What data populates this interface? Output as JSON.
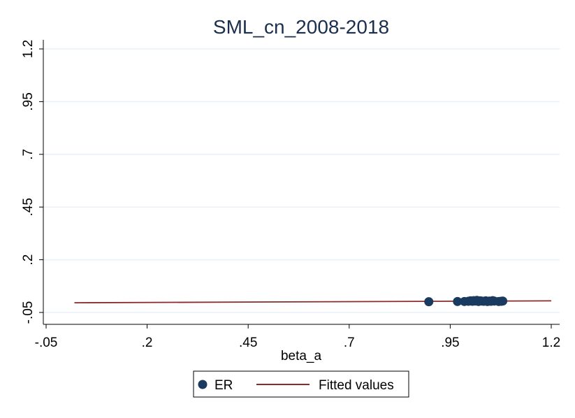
{
  "chart_data": {
    "type": "scatter",
    "title": "SML_cn_2008-2018",
    "xlabel": "beta_a",
    "ylabel": "",
    "xlim": [
      -0.05,
      1.2
    ],
    "ylim": [
      -0.05,
      1.2
    ],
    "xticks": [
      "-.05",
      ".2",
      ".45",
      ".7",
      ".95",
      "1.2"
    ],
    "yticks": [
      "-.05",
      ".2",
      ".45",
      ".7",
      ".95",
      "1.2"
    ],
    "grid": true,
    "legend_position": "bottom",
    "colors": {
      "scatter": "#1a3a5f",
      "line": "#8b2b2b",
      "grid": "#eaf0f5",
      "title": "#1b2f4d"
    },
    "series": [
      {
        "name": "ER",
        "kind": "scatter",
        "points": [
          [
            0.897,
            0.001
          ],
          [
            0.968,
            0.002
          ],
          [
            0.985,
            0.002
          ],
          [
            0.995,
            0.003
          ],
          [
            1.0,
            0.005
          ],
          [
            1.005,
            0.003
          ],
          [
            1.008,
            0.006
          ],
          [
            1.012,
            0.004
          ],
          [
            1.016,
            0.007
          ],
          [
            1.02,
            0.002
          ],
          [
            1.024,
            0.005
          ],
          [
            1.028,
            0.004
          ],
          [
            1.033,
            0.003
          ],
          [
            1.038,
            0.005
          ],
          [
            1.042,
            0.002
          ],
          [
            1.047,
            0.004
          ],
          [
            1.051,
            0.003
          ],
          [
            1.055,
            0.006
          ],
          [
            1.059,
            0.004
          ],
          [
            1.07,
            0.002
          ],
          [
            1.076,
            0.003
          ],
          [
            1.08,
            0.004
          ]
        ]
      },
      {
        "name": "Fitted values",
        "kind": "line",
        "points": [
          [
            0.02,
            -0.004
          ],
          [
            1.2,
            0.005
          ]
        ]
      }
    ]
  }
}
